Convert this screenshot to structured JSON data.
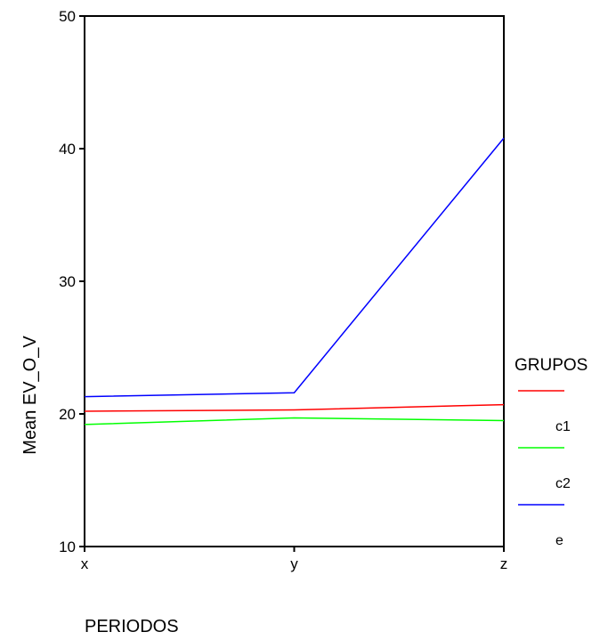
{
  "chart_data": {
    "type": "line",
    "title": "",
    "xlabel": "PERIODOS",
    "ylabel": "Mean EV_O_V",
    "categories": [
      "x",
      "y",
      "z"
    ],
    "ylim": [
      10,
      50
    ],
    "yticks": [
      10,
      20,
      30,
      40,
      50
    ],
    "grid": false,
    "legend": {
      "title": "GRUPOS",
      "position": "right",
      "entries": [
        "c1",
        "c2",
        "e"
      ]
    },
    "series": [
      {
        "name": "c1",
        "color": "#ff0000",
        "values": [
          20.2,
          20.3,
          20.7
        ]
      },
      {
        "name": "c2",
        "color": "#00ff00",
        "values": [
          19.2,
          19.7,
          19.5
        ]
      },
      {
        "name": "e",
        "color": "#0000ff",
        "values": [
          21.3,
          21.6,
          40.8
        ]
      }
    ]
  }
}
